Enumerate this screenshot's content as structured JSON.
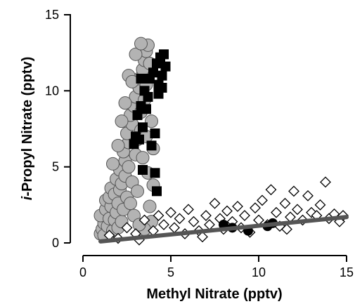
{
  "chart_data": {
    "type": "scatter",
    "title": "",
    "xlabel": "Methyl Nitrate (pptv)",
    "ylabel_prefix": "i",
    "ylabel_rest": "-Propyl Nitrate (pptv)",
    "xlim": [
      0,
      15
    ],
    "ylim": [
      0,
      15
    ],
    "xticks": [
      0,
      5,
      10,
      15
    ],
    "yticks": [
      0,
      5,
      10,
      15
    ],
    "xtick_labels": [
      "0",
      "5",
      "10",
      "15"
    ],
    "ytick_labels": [
      "0",
      "5",
      "10",
      "15"
    ],
    "grid": false,
    "legend": "none",
    "colors": {
      "grey_circles": "#b3b3b3",
      "black_squares": "#000000",
      "open_diamonds": "#ffffff",
      "black_circles": "#000000",
      "fit_line": "#555555"
    },
    "series": [
      {
        "marker": "circle-grey",
        "points": [
          [
            1.0,
            0.6
          ],
          [
            1.1,
            0.9
          ],
          [
            1.2,
            1.3
          ],
          [
            1.0,
            1.8
          ],
          [
            1.3,
            2.2
          ],
          [
            1.2,
            0.5
          ],
          [
            1.4,
            1.1
          ],
          [
            1.5,
            1.6
          ],
          [
            1.3,
            2.8
          ],
          [
            1.6,
            2.4
          ],
          [
            1.5,
            3.0
          ],
          [
            1.7,
            0.8
          ],
          [
            1.8,
            1.5
          ],
          [
            1.6,
            3.6
          ],
          [
            1.9,
            2.0
          ],
          [
            1.8,
            3.2
          ],
          [
            2.0,
            1.0
          ],
          [
            2.0,
            2.6
          ],
          [
            1.9,
            4.2
          ],
          [
            2.1,
            3.5
          ],
          [
            2.2,
            1.4
          ],
          [
            2.1,
            4.8
          ],
          [
            2.3,
            2.2
          ],
          [
            2.2,
            3.9
          ],
          [
            2.4,
            5.4
          ],
          [
            2.3,
            6.0
          ],
          [
            2.5,
            3.0
          ],
          [
            2.4,
            4.4
          ],
          [
            2.6,
            6.6
          ],
          [
            2.5,
            7.2
          ],
          [
            2.7,
            2.6
          ],
          [
            2.6,
            5.0
          ],
          [
            2.8,
            7.8
          ],
          [
            2.7,
            8.4
          ],
          [
            2.9,
            1.8
          ],
          [
            2.8,
            4.0
          ],
          [
            3.0,
            5.8
          ],
          [
            2.9,
            9.0
          ],
          [
            3.1,
            6.8
          ],
          [
            3.0,
            9.6
          ],
          [
            3.2,
            10.2
          ],
          [
            3.1,
            3.4
          ],
          [
            3.3,
            7.4
          ],
          [
            3.2,
            10.8
          ],
          [
            3.4,
            11.4
          ],
          [
            3.3,
            8.6
          ],
          [
            3.5,
            12.0
          ],
          [
            3.4,
            5.6
          ],
          [
            3.6,
            12.6
          ],
          [
            3.5,
            9.4
          ],
          [
            3.7,
            13.0
          ],
          [
            3.6,
            10.4
          ],
          [
            3.8,
            11.8
          ],
          [
            3.7,
            4.6
          ],
          [
            3.9,
            8.0
          ],
          [
            3.8,
            2.4
          ],
          [
            4.0,
            6.2
          ],
          [
            3.9,
            1.4
          ],
          [
            4.0,
            3.8
          ],
          [
            3.5,
            0.9
          ],
          [
            2.6,
            11.0
          ],
          [
            2.4,
            9.2
          ],
          [
            2.2,
            8.0
          ],
          [
            2.0,
            6.4
          ],
          [
            1.7,
            5.2
          ],
          [
            3.0,
            12.4
          ],
          [
            3.3,
            13.1
          ],
          [
            2.8,
            10.6
          ],
          [
            3.6,
            7.0
          ],
          [
            3.2,
            1.2
          ]
        ]
      },
      {
        "marker": "square-black",
        "points": [
          [
            2.9,
            6.5
          ],
          [
            3.0,
            7.0
          ],
          [
            3.1,
            8.4
          ],
          [
            3.2,
            6.8
          ],
          [
            3.3,
            9.0
          ],
          [
            3.4,
            7.6
          ],
          [
            3.5,
            10.0
          ],
          [
            3.6,
            8.8
          ],
          [
            3.7,
            9.6
          ],
          [
            3.8,
            10.8
          ],
          [
            3.9,
            6.4
          ],
          [
            4.0,
            11.2
          ],
          [
            4.1,
            7.2
          ],
          [
            4.2,
            11.8
          ],
          [
            4.3,
            10.4
          ],
          [
            4.4,
            12.2
          ],
          [
            4.5,
            11.0
          ],
          [
            4.6,
            12.4
          ],
          [
            4.5,
            10.2
          ],
          [
            4.7,
            11.6
          ],
          [
            4.3,
            9.8
          ],
          [
            4.1,
            4.6
          ],
          [
            4.2,
            3.4
          ],
          [
            3.4,
            4.8
          ],
          [
            3.3,
            10.8
          ]
        ]
      },
      {
        "marker": "diamond-open",
        "points": [
          [
            1.5,
            0.5
          ],
          [
            2.0,
            0.3
          ],
          [
            2.5,
            1.0
          ],
          [
            3.0,
            0.6
          ],
          [
            3.5,
            1.5
          ],
          [
            4.0,
            0.8
          ],
          [
            4.3,
            1.8
          ],
          [
            4.6,
            1.2
          ],
          [
            5.0,
            2.0
          ],
          [
            5.2,
            1.0
          ],
          [
            5.5,
            1.6
          ],
          [
            5.8,
            0.6
          ],
          [
            6.0,
            2.2
          ],
          [
            6.3,
            1.4
          ],
          [
            6.6,
            0.8
          ],
          [
            7.0,
            1.8
          ],
          [
            7.2,
            1.2
          ],
          [
            7.5,
            2.6
          ],
          [
            7.8,
            1.6
          ],
          [
            8.0,
            0.9
          ],
          [
            8.2,
            2.1
          ],
          [
            8.5,
            1.4
          ],
          [
            8.8,
            2.4
          ],
          [
            9.0,
            1.0
          ],
          [
            9.2,
            1.8
          ],
          [
            9.5,
            0.7
          ],
          [
            9.8,
            2.3
          ],
          [
            10.0,
            1.5
          ],
          [
            10.2,
            2.8
          ],
          [
            10.5,
            1.2
          ],
          [
            10.7,
            3.5
          ],
          [
            11.0,
            2.0
          ],
          [
            11.2,
            1.1
          ],
          [
            11.5,
            2.6
          ],
          [
            11.8,
            1.7
          ],
          [
            12.0,
            3.4
          ],
          [
            12.2,
            2.2
          ],
          [
            12.5,
            1.5
          ],
          [
            12.8,
            3.1
          ],
          [
            13.0,
            2.0
          ],
          [
            13.3,
            1.8
          ],
          [
            13.5,
            2.5
          ],
          [
            13.8,
            4.0
          ],
          [
            14.0,
            1.6
          ],
          [
            14.3,
            1.9
          ],
          [
            14.6,
            1.4
          ],
          [
            14.8,
            1.8
          ],
          [
            3.2,
            0.2
          ],
          [
            6.8,
            0.4
          ],
          [
            11.6,
            0.9
          ]
        ]
      },
      {
        "marker": "circle-black",
        "points": [
          [
            8.0,
            1.2
          ],
          [
            8.5,
            1.0
          ],
          [
            9.4,
            0.8
          ],
          [
            10.5,
            1.1
          ],
          [
            10.8,
            1.3
          ]
        ]
      },
      {
        "marker": "fit-line",
        "points": [
          [
            1.0,
            0.1
          ],
          [
            15.0,
            1.7
          ]
        ]
      }
    ]
  }
}
